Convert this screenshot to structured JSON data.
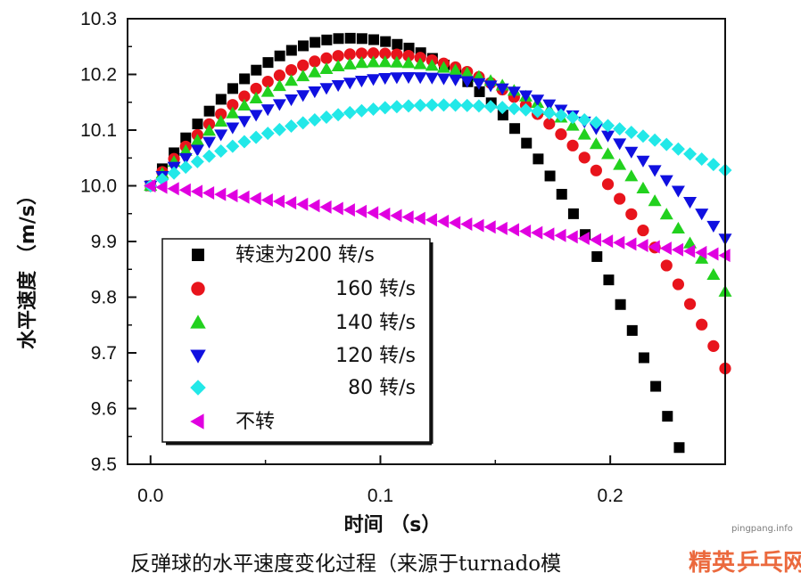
{
  "chart_data": {
    "type": "scatter",
    "xlabel": "时间 （s）",
    "ylabel": "水平速度 （m/s）",
    "xlim": [
      -0.01,
      0.25
    ],
    "ylim": [
      9.5,
      10.3
    ],
    "x_ticks": [
      "0.0",
      "0.1",
      "0.2"
    ],
    "x_tick_values": [
      0.0,
      0.1,
      0.2
    ],
    "y_ticks": [
      "9.5",
      "9.6",
      "9.7",
      "9.8",
      "9.9",
      "10.0",
      "10.1",
      "10.2",
      "10.3"
    ],
    "y_tick_values": [
      9.5,
      9.6,
      9.7,
      9.8,
      9.9,
      10.0,
      10.1,
      10.2,
      10.3
    ],
    "legend_position": "bottom-left",
    "series": [
      {
        "name": "转速为200 转/s",
        "marker": "square",
        "color": "#000000",
        "peak_t": 0.086,
        "peak_v": 10.265,
        "end_t": 0.23,
        "end_v": 9.53,
        "count": 46
      },
      {
        "name": "160 转/s",
        "marker": "circle",
        "color": "#e8141c",
        "peak_t": 0.095,
        "peak_v": 10.238,
        "end_t": 0.25,
        "end_v": 9.672,
        "count": 50
      },
      {
        "name": "140 转/s",
        "marker": "triangle-up",
        "color": "#22d11e",
        "peak_t": 0.1,
        "peak_v": 10.222,
        "end_t": 0.25,
        "end_v": 9.81,
        "count": 50
      },
      {
        "name": "120 转/s",
        "marker": "triangle-down",
        "color": "#1010e0",
        "peak_t": 0.112,
        "peak_v": 10.195,
        "end_t": 0.25,
        "end_v": 9.905,
        "count": 50
      },
      {
        "name": "80 转/s",
        "marker": "diamond",
        "color": "#22e8e8",
        "peak_t": 0.125,
        "peak_v": 10.145,
        "end_t": 0.25,
        "end_v": 10.028,
        "count": 50
      },
      {
        "name": "不转",
        "marker": "triangle-left",
        "color": "#e000e0",
        "peak_t": 0.0,
        "peak_v": 10.0,
        "end_t": 0.25,
        "end_v": 9.875,
        "count": 50,
        "linear": true
      }
    ],
    "caption": "反弹球的水平速度变化过程（来源于turnado模",
    "watermark": {
      "site": "pingpang.info",
      "brand_a": "精",
      "brand_b": "英",
      "brand_c": "乒乓网"
    }
  }
}
